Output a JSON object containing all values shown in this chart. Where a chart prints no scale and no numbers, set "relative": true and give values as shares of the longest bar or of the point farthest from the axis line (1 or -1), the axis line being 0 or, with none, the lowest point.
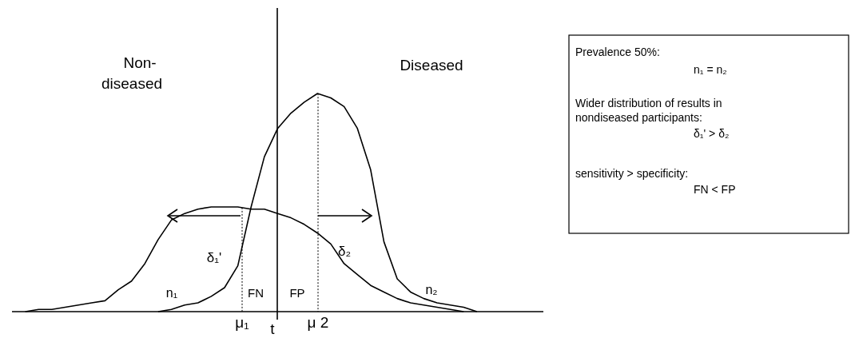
{
  "chart_data": {
    "type": "line",
    "relative": true,
    "line_style": "solid",
    "categories": [
      null,
      null,
      null,
      null,
      null,
      null,
      null,
      null,
      null,
      null,
      null,
      null,
      null,
      null,
      null,
      null,
      null,
      null,
      null,
      null,
      null,
      null,
      null,
      null,
      null,
      null,
      null,
      null,
      null,
      null,
      null,
      null,
      null,
      null,
      null,
      null,
      null,
      null,
      null,
      null,
      null
    ],
    "series": [
      {
        "color": "#000000",
        "values": [
          null,
          0,
          0.01,
          0.01,
          0.02,
          0.03,
          0.04,
          0.05,
          0.1,
          0.14,
          0.22,
          0.33,
          0.42,
          0.45,
          0.47,
          0.48,
          0.48,
          0.48,
          0.47,
          0.47,
          0.45,
          0.43,
          0.4,
          0.36,
          0.31,
          0.22,
          0.17,
          0.12,
          0.09,
          0.06,
          0.04,
          0.03,
          0.02,
          0.01,
          0,
          null,
          null,
          null,
          null,
          null,
          null
        ]
      },
      {
        "color": "#000000",
        "values": [
          null,
          null,
          null,
          null,
          null,
          null,
          null,
          null,
          null,
          null,
          null,
          0,
          0.01,
          0.03,
          0.04,
          0.07,
          0.11,
          0.21,
          0.48,
          0.71,
          0.84,
          0.91,
          0.96,
          1,
          0.98,
          0.94,
          0.84,
          0.65,
          0.32,
          0.15,
          0.09,
          0.06,
          0.04,
          0.03,
          0.02,
          0,
          null,
          null,
          null,
          null,
          null
        ]
      }
    ],
    "ref_lines": [
      {
        "axis": "x",
        "label": "t",
        "line_style": "solid"
      },
      {
        "axis": "x",
        "label": "μ₁",
        "line_style": "dotted"
      },
      {
        "axis": "x",
        "label": "μ 2",
        "line_style": "dotted"
      }
    ],
    "annotations": [
      "Non-",
      "diseased",
      "Diseased",
      "n₁",
      "n₂",
      "FN",
      "FP",
      "δ₁'",
      "δ₂",
      "Prevalence 50%:",
      "n₁ = n₂",
      "Wider distribution of results in",
      "nondiseased participants:",
      "δ₁' > δ₂",
      "sensitivity > specificity:",
      "FN < FP"
    ]
  }
}
